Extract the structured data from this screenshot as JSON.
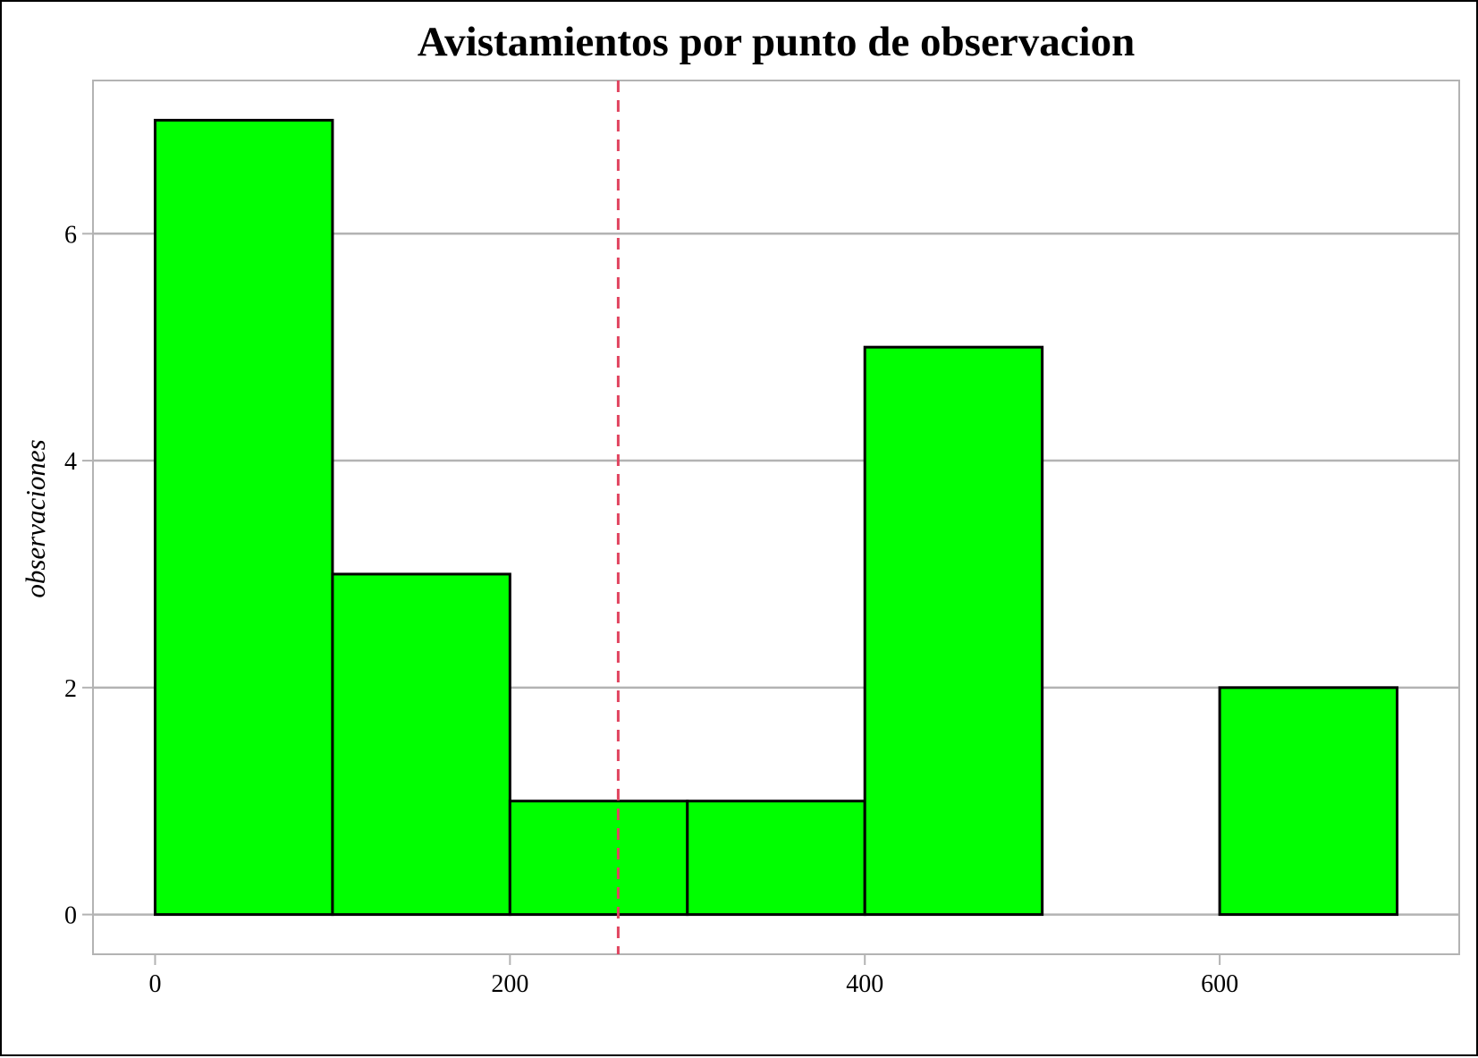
{
  "chart_data": {
    "type": "bar",
    "title": "Avistamientos por punto de observacion",
    "xlabel": "",
    "ylabel": "observaciones",
    "bins": [
      {
        "x0": 0,
        "x1": 100,
        "count": 7
      },
      {
        "x0": 100,
        "x1": 200,
        "count": 3
      },
      {
        "x0": 200,
        "x1": 300,
        "count": 1
      },
      {
        "x0": 300,
        "x1": 400,
        "count": 1
      },
      {
        "x0": 400,
        "x1": 500,
        "count": 5
      },
      {
        "x0": 500,
        "x1": 600,
        "count": 0
      },
      {
        "x0": 600,
        "x1": 700,
        "count": 2
      }
    ],
    "xlim": [
      -35,
      735
    ],
    "ylim": [
      -0.35,
      7.35
    ],
    "x_ticks": [
      0,
      200,
      400,
      600
    ],
    "y_ticks": [
      0,
      2,
      4,
      6
    ],
    "reference_line_x": 261,
    "grid": "horizontal",
    "colors": {
      "bar_fill": "#00ff00",
      "bar_stroke": "#000000",
      "reference_line": "#e0435f",
      "grid": "#b3b3b3",
      "panel_border": "#b3b3b3"
    }
  }
}
